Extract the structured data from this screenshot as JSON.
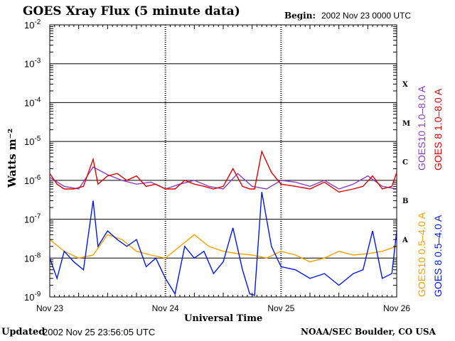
{
  "header": {
    "title": "GOES Xray Flux (5 minute data)",
    "begin_label": "Begin:",
    "begin_value": "2002 Nov 23 0000 UTC"
  },
  "footer": {
    "updated_label": "Updated",
    "updated_value": "2002 Nov 25 23:56:05 UTC",
    "credit": "NOAA/SEC Boulder, CO USA"
  },
  "colors": {
    "goes10_long": "#8b3fc8",
    "goes8_long": "#dd0000",
    "goes10_short": "#f5a000",
    "goes8_short": "#0018e6"
  },
  "chart_data": {
    "type": "line",
    "title": "GOES Xray Flux (5 minute data)",
    "xlabel": "Universal Time",
    "ylabel": "Watts m⁻²",
    "y_scale": "log",
    "ylim": [
      1e-09,
      0.01
    ],
    "xlim": [
      "2002-11-23",
      "2002-11-26"
    ],
    "x_ticks": [
      "Nov 23",
      "Nov 24",
      "Nov 25",
      "Nov 26"
    ],
    "y_ticks": [
      {
        "base": "10",
        "exp": "-9"
      },
      {
        "base": "10",
        "exp": "-8"
      },
      {
        "base": "10",
        "exp": "-7"
      },
      {
        "base": "10",
        "exp": "-6"
      },
      {
        "base": "10",
        "exp": "-5"
      },
      {
        "base": "10",
        "exp": "-4"
      },
      {
        "base": "10",
        "exp": "-3"
      },
      {
        "base": "10",
        "exp": "-2"
      }
    ],
    "flare_classes": [
      "A",
      "B",
      "C",
      "M",
      "X"
    ],
    "grid": true,
    "series": [
      {
        "name": "GOES10 1.0–8.0 A",
        "color": "#8b3fc8",
        "x": [
          "2002-11-23 00:00",
          "2002-11-23 03:00",
          "2002-11-23 06:00",
          "2002-11-23 09:00",
          "2002-11-23 12:00",
          "2002-11-23 15:00",
          "2002-11-23 18:00",
          "2002-11-23 21:00",
          "2002-11-24 00:00",
          "2002-11-24 03:00",
          "2002-11-24 06:00",
          "2002-11-24 09:00",
          "2002-11-24 12:00",
          "2002-11-24 15:00",
          "2002-11-24 18:00",
          "2002-11-24 21:00",
          "2002-11-25 00:00",
          "2002-11-25 03:00",
          "2002-11-25 06:00",
          "2002-11-25 09:00",
          "2002-11-25 12:00",
          "2002-11-25 15:00",
          "2002-11-25 18:00",
          "2002-11-25 21:00",
          "2002-11-26 00:00"
        ],
        "values": [
          1.2e-06,
          7e-07,
          6e-07,
          2.2e-06,
          1.4e-06,
          1e-06,
          8e-07,
          9e-07,
          6e-07,
          8e-07,
          1e-06,
          7e-07,
          6e-07,
          1.5e-06,
          7e-07,
          6e-07,
          1e-06,
          9e-07,
          7e-07,
          1e-06,
          6e-07,
          8e-07,
          1.3e-06,
          7e-07,
          6e-07
        ]
      },
      {
        "name": "GOES 8 1.0–8.0 A",
        "color": "#dd0000",
        "x": [
          "2002-11-23 00:00",
          "2002-11-23 01:30",
          "2002-11-23 03:00",
          "2002-11-23 05:00",
          "2002-11-23 07:00",
          "2002-11-23 09:00",
          "2002-11-23 10:00",
          "2002-11-23 12:00",
          "2002-11-23 14:00",
          "2002-11-23 16:00",
          "2002-11-23 18:00",
          "2002-11-23 20:00",
          "2002-11-23 22:00",
          "2002-11-24 00:00",
          "2002-11-24 02:00",
          "2002-11-24 04:00",
          "2002-11-24 06:00",
          "2002-11-24 08:00",
          "2002-11-24 10:00",
          "2002-11-24 12:00",
          "2002-11-24 14:00",
          "2002-11-24 16:00",
          "2002-11-24 17:30",
          "2002-11-24 18:30",
          "2002-11-24 20:00",
          "2002-11-24 22:00",
          "2002-11-25 00:00",
          "2002-11-25 03:00",
          "2002-11-25 06:00",
          "2002-11-25 09:00",
          "2002-11-25 12:00",
          "2002-11-25 15:00",
          "2002-11-25 17:00",
          "2002-11-25 19:00",
          "2002-11-25 21:00",
          "2002-11-25 23:00",
          "2002-11-26 00:00"
        ],
        "values": [
          1.5e-06,
          8e-07,
          6e-07,
          6e-07,
          7e-07,
          3.5e-06,
          8e-07,
          1.3e-06,
          1.5e-06,
          1e-06,
          1.3e-06,
          7e-07,
          8e-07,
          6e-07,
          6e-07,
          1e-06,
          8e-07,
          7e-07,
          6e-07,
          7e-07,
          2e-06,
          7e-07,
          6e-07,
          6e-07,
          5.5e-06,
          1.6e-06,
          8e-07,
          7e-07,
          6e-07,
          9e-07,
          5e-07,
          6e-07,
          7e-07,
          1.3e-06,
          6e-07,
          7e-07,
          1.6e-06
        ]
      },
      {
        "name": "GOES10 0.5–4.0 A",
        "color": "#f5a000",
        "x": [
          "2002-11-23 00:00",
          "2002-11-23 03:00",
          "2002-11-23 06:00",
          "2002-11-23 09:00",
          "2002-11-23 12:00",
          "2002-11-23 15:00",
          "2002-11-23 18:00",
          "2002-11-23 21:00",
          "2002-11-24 00:00",
          "2002-11-24 03:00",
          "2002-11-24 06:00",
          "2002-11-24 09:00",
          "2002-11-24 12:00",
          "2002-11-24 15:00",
          "2002-11-24 18:00",
          "2002-11-24 21:00",
          "2002-11-25 00:00",
          "2002-11-25 03:00",
          "2002-11-25 06:00",
          "2002-11-25 09:00",
          "2002-11-25 12:00",
          "2002-11-25 15:00",
          "2002-11-25 18:00",
          "2002-11-25 21:00",
          "2002-11-26 00:00"
        ],
        "values": [
          3e-08,
          1.5e-08,
          1e-08,
          1.2e-08,
          4e-08,
          3e-08,
          1.5e-08,
          1.2e-08,
          1e-08,
          2e-08,
          4e-08,
          2e-08,
          1.5e-08,
          1.3e-08,
          1.2e-08,
          1e-08,
          1.5e-08,
          1.2e-08,
          8e-09,
          1e-08,
          1.5e-08,
          1.2e-08,
          1.3e-08,
          1.5e-08,
          2e-08
        ]
      },
      {
        "name": "GOES 8 0.5–4.0 A",
        "color": "#0018e6",
        "x": [
          "2002-11-23 00:00",
          "2002-11-23 01:30",
          "2002-11-23 03:00",
          "2002-11-23 05:00",
          "2002-11-23 07:00",
          "2002-11-23 09:00",
          "2002-11-23 10:00",
          "2002-11-23 12:00",
          "2002-11-23 14:00",
          "2002-11-23 16:00",
          "2002-11-23 18:00",
          "2002-11-23 20:00",
          "2002-11-23 22:00",
          "2002-11-24 00:00",
          "2002-11-24 02:00",
          "2002-11-24 04:00",
          "2002-11-24 06:00",
          "2002-11-24 08:00",
          "2002-11-24 10:00",
          "2002-11-24 12:00",
          "2002-11-24 14:00",
          "2002-11-24 16:00",
          "2002-11-24 17:30",
          "2002-11-24 18:30",
          "2002-11-24 20:00",
          "2002-11-24 22:00",
          "2002-11-25 00:00",
          "2002-11-25 03:00",
          "2002-11-25 06:00",
          "2002-11-25 09:00",
          "2002-11-25 12:00",
          "2002-11-25 15:00",
          "2002-11-25 17:00",
          "2002-11-25 19:00",
          "2002-11-25 21:00",
          "2002-11-25 23:00",
          "2002-11-26 00:00"
        ],
        "values": [
          1e-08,
          3e-09,
          1.5e-08,
          8e-09,
          5e-09,
          3e-07,
          2e-08,
          5e-08,
          3e-08,
          2e-08,
          3e-08,
          6e-09,
          1e-08,
          3e-09,
          1.2e-09,
          2e-08,
          1e-08,
          1.5e-08,
          4e-09,
          8e-09,
          6e-08,
          5e-09,
          1.2e-09,
          1.1e-09,
          5e-07,
          2e-08,
          6e-09,
          5e-09,
          3e-09,
          4e-09,
          2e-09,
          4e-09,
          5e-09,
          5e-08,
          3e-09,
          4e-09,
          5e-08
        ]
      }
    ]
  }
}
